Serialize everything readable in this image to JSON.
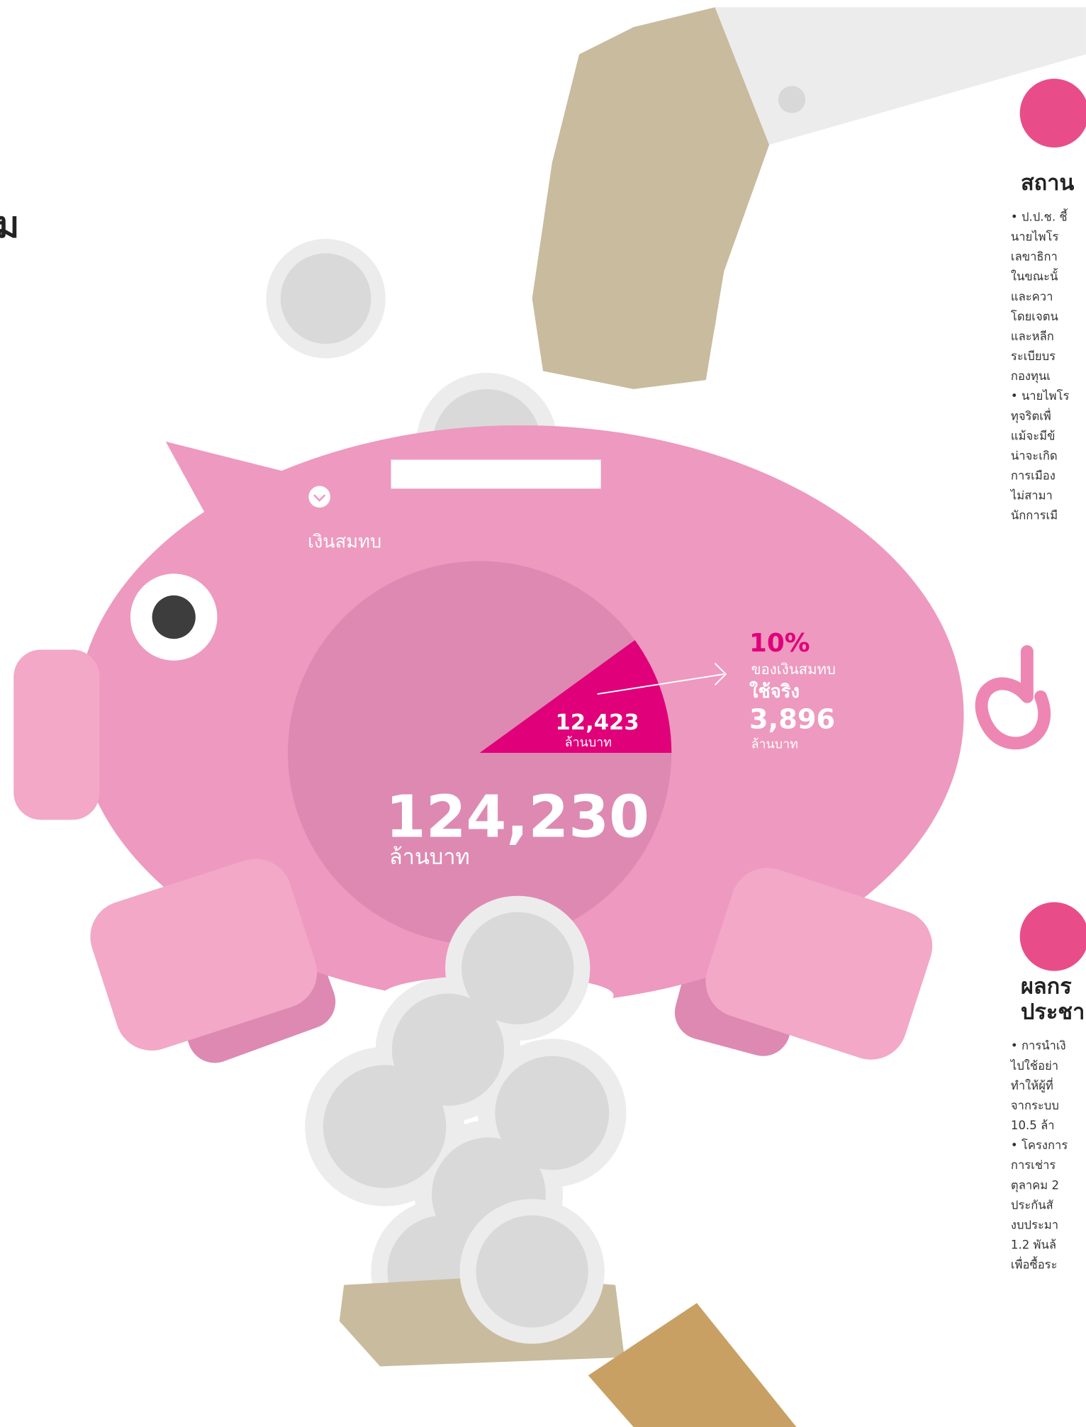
{
  "title_fragment": "ม",
  "piggy": {
    "label": "เงินสมทบ",
    "total": {
      "value": "124,230",
      "unit": "ล้านบาท"
    },
    "slice": {
      "value": "12,423",
      "unit": "ล้านบาท"
    },
    "share": {
      "percent": 10,
      "percent_label": "10%",
      "note": "ของเงินสมทบ"
    },
    "actual": {
      "label": "ใช้จริง",
      "value": "3,896",
      "unit": "ล้านบาท"
    }
  },
  "sections": [
    {
      "heading": [
        "สถาน"
      ],
      "lines": [
        "• ป.ป.ช. ชี้",
        "นายไพโร",
        "เลขาธิกา",
        "ในขณะนั้",
        "และควา",
        "โดยเจตน",
        "และหลีก",
        "ระเบียบร",
        "กองทุนเ",
        "• นายไพโร",
        "ทุจริตเพื่",
        "แม้จะมีข้",
        "น่าจะเกิด",
        "การเมือง",
        "ไม่สามา",
        "นักการเมื"
      ]
    },
    {
      "heading": [
        "ผลกร",
        "ประชา"
      ],
      "lines": [
        "• การนำเงิ",
        "ไปใช้อย่า",
        "ทำให้ผู้ที่",
        "จากระบบ",
        "10.5 ล้า",
        "• โครงการ",
        "การเช่าร",
        "ตุลาคม 2",
        "ประกันสั",
        "งบประมา",
        "1.2 พันล้",
        "เพื่อซื้อระ"
      ]
    }
  ]
}
